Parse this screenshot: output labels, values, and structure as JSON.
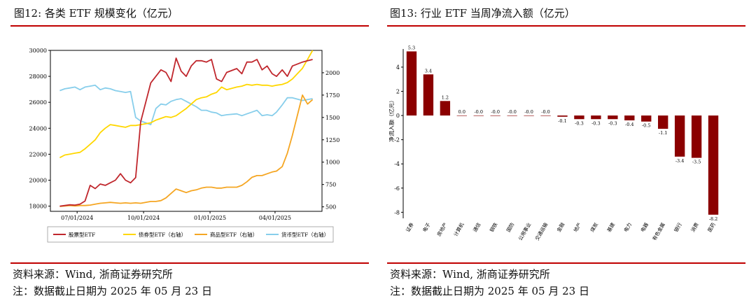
{
  "left": {
    "title": "图12:  各类 ETF 规模变化（亿元）",
    "source": "资料来源：Wind, 浙商证券研究所",
    "note": "注：数据截止日期为 2025 年 05 月 23 日"
  },
  "right": {
    "title": "图13:  行业 ETF 当周净流入额（亿元）",
    "source": "资料来源：Wind, 浙商证券研究所",
    "note": "注：数据截止日期为 2025 年 05 月 23 日"
  },
  "colors": {
    "rule": "#c00000",
    "stock": "#c0272d",
    "bond": "#ffd700",
    "commodity": "#f5a623",
    "money": "#87ceeb",
    "bar": "#8b0000"
  },
  "chart_data": [
    {
      "type": "line",
      "x": [
        "2024-06-07",
        "2024-06-14",
        "2024-06-21",
        "2024-06-28",
        "2024-07-05",
        "2024-07-12",
        "2024-07-19",
        "2024-07-26",
        "2024-08-02",
        "2024-08-09",
        "2024-08-16",
        "2024-08-23",
        "2024-08-30",
        "2024-09-06",
        "2024-09-13",
        "2024-09-20",
        "2024-09-27",
        "2024-10-11",
        "2024-10-18",
        "2024-10-25",
        "2024-11-01",
        "2024-11-08",
        "2024-11-15",
        "2024-11-22",
        "2024-11-29",
        "2024-12-06",
        "2024-12-13",
        "2024-12-20",
        "2024-12-27",
        "2025-01-03",
        "2025-01-10",
        "2025-01-17",
        "2025-01-24",
        "2025-02-07",
        "2025-02-14",
        "2025-02-21",
        "2025-02-28",
        "2025-03-07",
        "2025-03-14",
        "2025-03-21",
        "2025-03-28",
        "2025-04-03",
        "2025-04-11",
        "2025-04-18",
        "2025-04-25",
        "2025-05-09",
        "2025-05-16",
        "2025-05-23"
      ],
      "xticks": [
        "07/01/2024",
        "10/01/2024",
        "01/01/2025",
        "04/01/2025"
      ],
      "xtick_dates": [
        "2024-07-01",
        "2024-10-01",
        "2025-01-01",
        "2025-04-01"
      ],
      "ylim": [
        17600,
        30000
      ],
      "yticks": [
        18000,
        20000,
        22000,
        24000,
        26000,
        28000,
        30000
      ],
      "y2lim": [
        450,
        2250
      ],
      "y2ticks": [
        500,
        750,
        1000,
        1250,
        1500,
        1750,
        2000
      ],
      "legend_position": "bottom",
      "series": [
        {
          "name": "股票型ETF",
          "axis": "left",
          "values": [
            18000,
            18050,
            18100,
            18080,
            18150,
            18400,
            19600,
            19350,
            19700,
            19600,
            19800,
            20000,
            20500,
            20000,
            19800,
            20200,
            24500,
            27500,
            28000,
            28500,
            28300,
            27600,
            29400,
            28400,
            28000,
            28800,
            29200,
            29200,
            29100,
            29300,
            27800,
            27600,
            28300,
            28600,
            28200,
            29100,
            29100,
            29300,
            28500,
            28800,
            28200,
            28000,
            28500,
            28000,
            28800,
            29100,
            29200,
            29300
          ]
        },
        {
          "name": "债券型ETF（右轴）",
          "axis": "right",
          "values": [
            1050,
            1080,
            1090,
            1100,
            1110,
            1150,
            1200,
            1250,
            1330,
            1380,
            1420,
            1410,
            1400,
            1390,
            1410,
            1410,
            1420,
            1440,
            1470,
            1490,
            1510,
            1500,
            1520,
            1560,
            1600,
            1650,
            1700,
            1720,
            1730,
            1760,
            1780,
            1840,
            1810,
            1840,
            1850,
            1870,
            1860,
            1870,
            1860,
            1860,
            1850,
            1860,
            1870,
            1890,
            1930,
            2050,
            2150,
            2250
          ]
        },
        {
          "name": "商品型ETF（右轴）",
          "axis": "right",
          "values": [
            505,
            510,
            515,
            510,
            515,
            515,
            520,
            530,
            540,
            545,
            550,
            545,
            540,
            545,
            540,
            545,
            540,
            560,
            560,
            570,
            600,
            650,
            700,
            680,
            660,
            680,
            690,
            710,
            720,
            720,
            710,
            710,
            720,
            720,
            740,
            780,
            830,
            850,
            850,
            870,
            890,
            900,
            950,
            1100,
            1300,
            1750,
            1650,
            1700
          ]
        },
        {
          "name": "货币型ETF（右轴）",
          "axis": "right",
          "values": [
            1800,
            1820,
            1830,
            1840,
            1810,
            1840,
            1850,
            1860,
            1810,
            1830,
            1820,
            1800,
            1790,
            1780,
            1790,
            1500,
            1460,
            1420,
            1600,
            1650,
            1640,
            1680,
            1700,
            1710,
            1680,
            1650,
            1620,
            1580,
            1580,
            1560,
            1550,
            1520,
            1530,
            1540,
            1520,
            1540,
            1560,
            1580,
            1520,
            1530,
            1520,
            1560,
            1640,
            1720,
            1720,
            1690,
            1700,
            1710
          ]
        }
      ]
    },
    {
      "type": "bar",
      "ylabel": "净流入额（亿元）",
      "ylim": [
        -8.5,
        5.5
      ],
      "yticks": [
        -8,
        -6,
        -4,
        -2,
        0,
        2,
        4
      ],
      "categories": [
        "证券",
        "电子",
        "房地产",
        "计算机",
        "通信",
        "钢铁",
        "国防",
        "公用事业",
        "交通运输",
        "金融",
        "地产",
        "煤炭",
        "基建",
        "电力",
        "电器",
        "有色金属",
        "银行",
        "消费",
        "医药"
      ],
      "values": [
        5.3,
        3.4,
        1.2,
        0.0,
        -0.0,
        -0.0,
        -0.0,
        -0.0,
        -0.0,
        -0.1,
        -0.3,
        -0.3,
        -0.3,
        -0.4,
        -0.5,
        -1.1,
        -3.4,
        -3.5,
        -8.2
      ],
      "value_labels": [
        "5.3",
        "3.4",
        "1.2",
        "0.0",
        "-0.0",
        "-0.0",
        "-0.0",
        "-0.0",
        "-0.0",
        "-0.1",
        "-0.3",
        "-0.3",
        "-0.3",
        "-0.4",
        "-0.5",
        "-1.1",
        "-3.4",
        "-3.5",
        "-8.2"
      ]
    }
  ]
}
